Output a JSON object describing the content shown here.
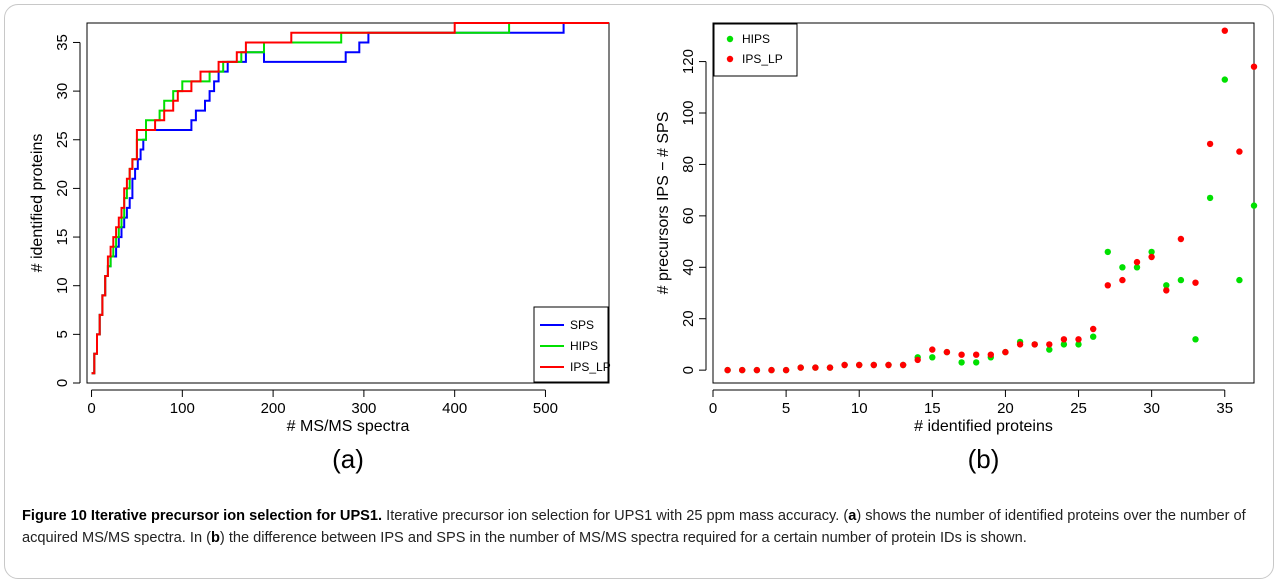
{
  "chart_data": [
    {
      "type": "line",
      "panel_label": "(a)",
      "xlabel": "# MS/MS spectra",
      "ylabel": "# identified proteins",
      "xlim": [
        -5,
        570
      ],
      "ylim": [
        0,
        37
      ],
      "xticks": [
        0,
        100,
        200,
        300,
        400,
        500
      ],
      "yticks": [
        0,
        5,
        10,
        15,
        20,
        25,
        30,
        35
      ],
      "legend_position": "bottom-right",
      "series": [
        {
          "name": "SPS",
          "color": "#0000ff",
          "x": [
            0,
            3,
            6,
            9,
            12,
            15,
            18,
            21,
            24,
            27,
            30,
            33,
            36,
            39,
            42,
            45,
            48,
            51,
            54,
            57,
            60,
            105,
            110,
            115,
            120,
            125,
            130,
            135,
            140,
            145,
            150,
            155,
            160,
            165,
            170,
            175,
            180,
            185,
            190,
            230,
            280,
            285,
            295,
            300,
            305,
            310,
            455,
            460,
            520,
            570
          ],
          "y": [
            1,
            3,
            5,
            7,
            9,
            11,
            12,
            13,
            13,
            14,
            15,
            16,
            17,
            18,
            19,
            21,
            22,
            23,
            24,
            25,
            26,
            26,
            27,
            28,
            28,
            29,
            30,
            31,
            32,
            32,
            33,
            33,
            33,
            33,
            34,
            34,
            34,
            34,
            33,
            33,
            34,
            34,
            35,
            35,
            36,
            36,
            36,
            36,
            37,
            37
          ]
        },
        {
          "name": "HIPS",
          "color": "#00e000",
          "x": [
            0,
            3,
            6,
            9,
            12,
            15,
            18,
            21,
            24,
            27,
            30,
            33,
            36,
            39,
            42,
            45,
            50,
            60,
            75,
            80,
            90,
            95,
            100,
            110,
            120,
            130,
            135,
            145,
            155,
            165,
            180,
            190,
            200,
            215,
            240,
            270,
            275,
            400,
            460,
            570
          ],
          "y": [
            1,
            3,
            5,
            7,
            9,
            11,
            12,
            13,
            14,
            15,
            16,
            17,
            19,
            20,
            22,
            23,
            25,
            27,
            28,
            29,
            30,
            30,
            31,
            31,
            31,
            32,
            32,
            33,
            33,
            34,
            34,
            35,
            35,
            35,
            35,
            35,
            36,
            36,
            37,
            37
          ]
        },
        {
          "name": "IPS_LP",
          "color": "#ff0000",
          "x": [
            0,
            3,
            6,
            9,
            12,
            15,
            18,
            21,
            24,
            27,
            30,
            33,
            36,
            39,
            42,
            45,
            50,
            60,
            70,
            80,
            90,
            95,
            100,
            110,
            120,
            130,
            140,
            150,
            160,
            170,
            200,
            220,
            280,
            400,
            570
          ],
          "y": [
            1,
            3,
            5,
            7,
            9,
            11,
            13,
            14,
            15,
            16,
            17,
            18,
            20,
            21,
            22,
            23,
            26,
            26,
            27,
            28,
            29,
            30,
            30,
            31,
            32,
            32,
            33,
            33,
            34,
            35,
            35,
            36,
            36,
            37,
            37
          ]
        }
      ]
    },
    {
      "type": "scatter",
      "panel_label": "(b)",
      "xlabel": "# identified proteins",
      "ylabel": "# precursors IPS − # SPS",
      "xlim": [
        0,
        37
      ],
      "ylim": [
        -5,
        135
      ],
      "xticks": [
        0,
        5,
        10,
        15,
        20,
        25,
        30,
        35
      ],
      "yticks": [
        0,
        20,
        40,
        60,
        80,
        100,
        120
      ],
      "legend_position": "top-left",
      "series": [
        {
          "name": "HIPS",
          "color": "#00e000",
          "x": [
            1,
            2,
            3,
            4,
            5,
            6,
            7,
            8,
            9,
            10,
            11,
            12,
            13,
            14,
            15,
            16,
            17,
            18,
            19,
            20,
            21,
            22,
            23,
            24,
            25,
            26,
            27,
            28,
            29,
            30,
            31,
            32,
            33,
            34,
            35,
            36,
            37
          ],
          "y": [
            0,
            0,
            0,
            0,
            0,
            1,
            1,
            1,
            2,
            2,
            2,
            2,
            2,
            5,
            5,
            7,
            3,
            3,
            5,
            7,
            11,
            10,
            8,
            10,
            10,
            13,
            46,
            40,
            40,
            46,
            33,
            35,
            12,
            67,
            113,
            35,
            64
          ]
        },
        {
          "name": "IPS_LP",
          "color": "#ff0000",
          "x": [
            1,
            2,
            3,
            4,
            5,
            6,
            7,
            8,
            9,
            10,
            11,
            12,
            13,
            14,
            15,
            16,
            17,
            18,
            19,
            20,
            21,
            22,
            23,
            24,
            25,
            26,
            27,
            28,
            29,
            30,
            31,
            32,
            33,
            34,
            35,
            36,
            37
          ],
          "y": [
            0,
            0,
            0,
            0,
            0,
            1,
            1,
            1,
            2,
            2,
            2,
            2,
            2,
            4,
            8,
            7,
            6,
            6,
            6,
            7,
            10,
            10,
            10,
            12,
            12,
            16,
            33,
            35,
            42,
            44,
            31,
            51,
            34,
            88,
            132,
            85,
            118
          ]
        }
      ]
    }
  ],
  "caption": {
    "label": "Figure 10 Iterative precursor ion selection for UPS1.",
    "segments": [
      {
        "text": " Iterative precursor ion selection for UPS1 with 25 ppm mass accuracy. (",
        "bold": false
      },
      {
        "text": "a",
        "bold": true
      },
      {
        "text": ") shows the number of identified proteins over the number of acquired MS/MS spectra. In (",
        "bold": false
      },
      {
        "text": "b",
        "bold": true
      },
      {
        "text": ") the difference between IPS and SPS in the number of MS/MS spectra required for a certain number of protein IDs is shown.",
        "bold": false
      }
    ]
  }
}
